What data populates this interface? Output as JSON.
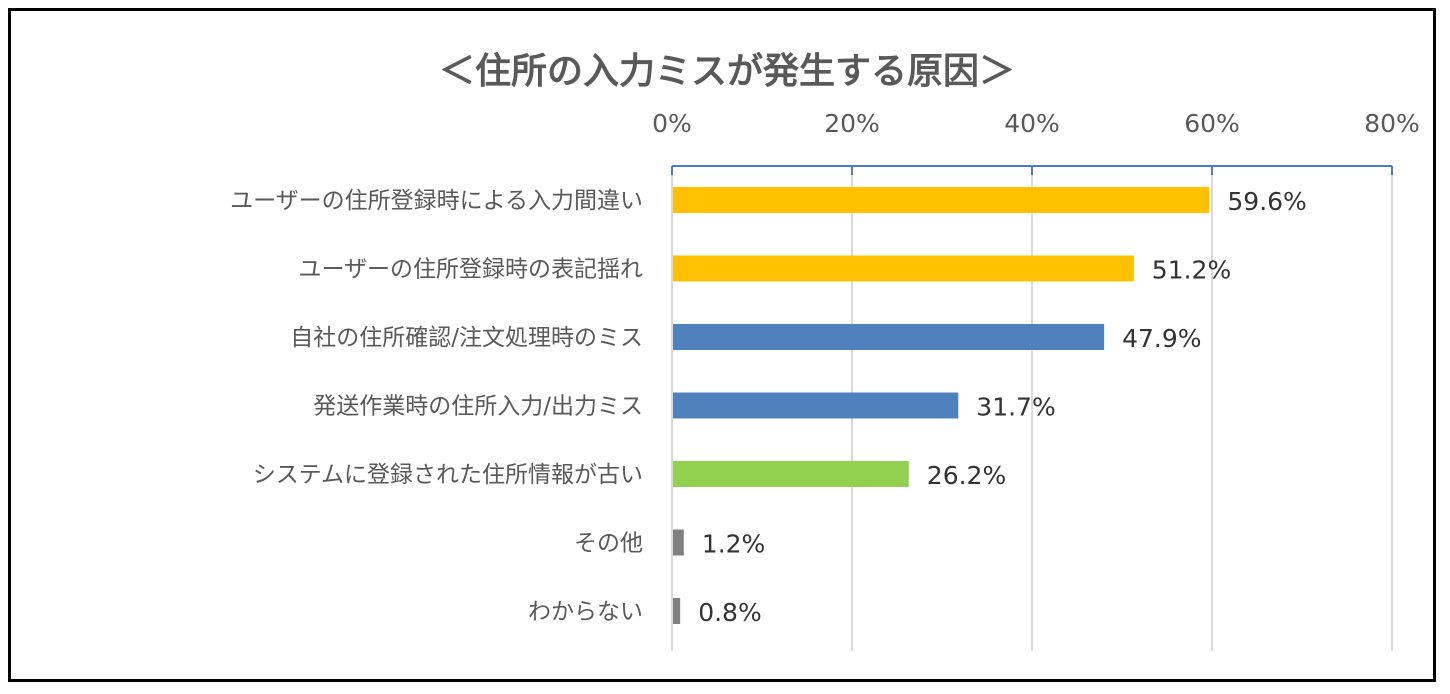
{
  "chart_data": {
    "type": "bar",
    "orientation": "horizontal",
    "title": "＜住所の入力ミスが発生する原因＞",
    "xlabel": "",
    "ylabel": "",
    "xlim": [
      0,
      80
    ],
    "x_ticks": [
      0,
      20,
      40,
      60,
      80
    ],
    "x_tick_labels": [
      "0%",
      "20%",
      "40%",
      "60%",
      "80%"
    ],
    "x_axis_position": "top",
    "grid": true,
    "legend": "none",
    "categories": [
      "ユーザーの住所登録時による入力間違い",
      "ユーザーの住所登録時の表記揺れ",
      "自社の住所確認/注文処理時のミス",
      "発送作業時の住所入力/出力ミス",
      "システムに登録された住所情報が古い",
      "その他",
      "わからない"
    ],
    "values": [
      59.6,
      51.2,
      47.9,
      31.7,
      26.2,
      1.2,
      0.8
    ],
    "value_labels": [
      "59.6%",
      "51.2%",
      "47.9%",
      "31.7%",
      "26.2%",
      "1.2%",
      "0.8%"
    ],
    "colors": [
      "#FFC000",
      "#FFC000",
      "#4F81BD",
      "#4F81BD",
      "#92D050",
      "#808080",
      "#808080"
    ],
    "axis_color": "#4A7EBB",
    "grid_color": "#D9D9D9"
  }
}
